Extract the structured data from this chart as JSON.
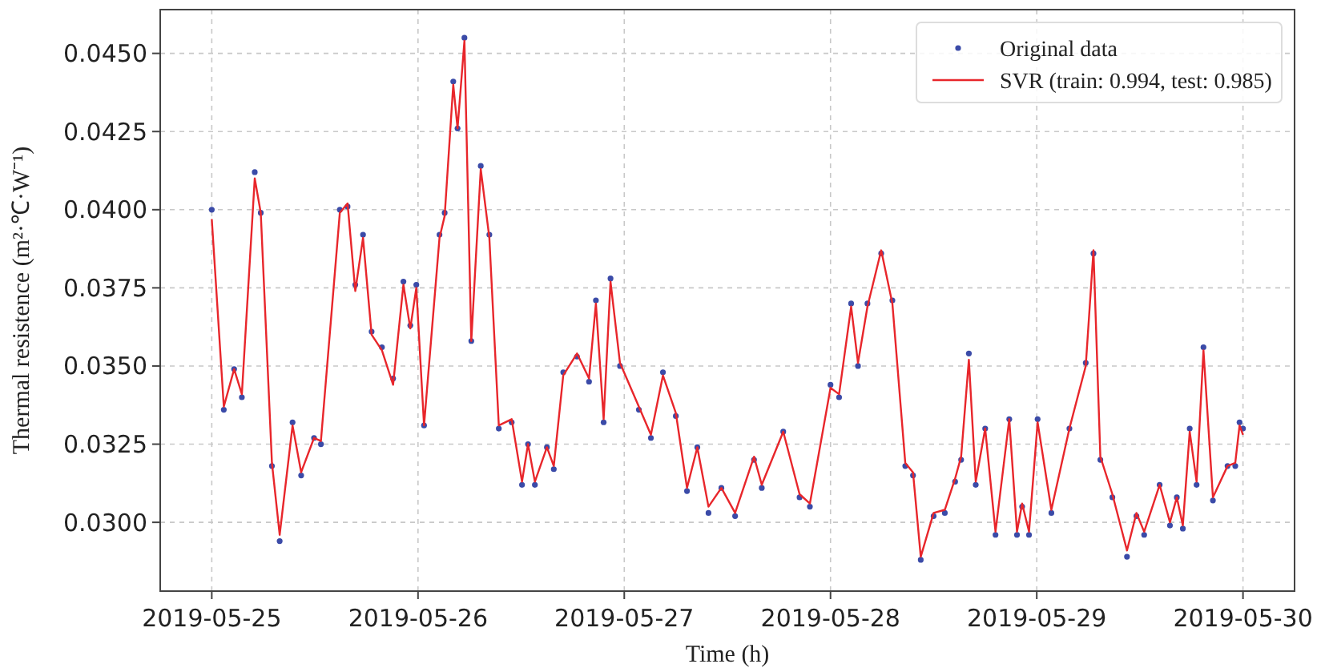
{
  "chart_data": {
    "type": "line",
    "xlabel": "Time (h)",
    "ylabel": "Thermal resistence  (m²·℃·W⁻¹)",
    "x": [
      "2019-05-25T00:00",
      "2019-05-25T01:24",
      "2019-05-25T02:36",
      "2019-05-25T03:30",
      "2019-05-25T05:00",
      "2019-05-25T05:42",
      "2019-05-25T07:00",
      "2019-05-25T07:54",
      "2019-05-25T09:24",
      "2019-05-25T10:24",
      "2019-05-25T11:54",
      "2019-05-25T12:42",
      "2019-05-25T14:54",
      "2019-05-25T15:48",
      "2019-05-25T16:42",
      "2019-05-25T17:36",
      "2019-05-25T18:36",
      "2019-05-25T19:48",
      "2019-05-25T21:06",
      "2019-05-25T22:18",
      "2019-05-25T23:06",
      "2019-05-25T23:48",
      "2019-05-26T00:42",
      "2019-05-26T02:30",
      "2019-05-26T03:06",
      "2019-05-26T04:06",
      "2019-05-26T04:36",
      "2019-05-26T05:24",
      "2019-05-26T06:12",
      "2019-05-26T07:18",
      "2019-05-26T08:18",
      "2019-05-26T09:24",
      "2019-05-26T10:54",
      "2019-05-26T12:06",
      "2019-05-26T12:48",
      "2019-05-26T13:36",
      "2019-05-26T15:00",
      "2019-05-26T15:48",
      "2019-05-26T16:54",
      "2019-05-26T18:30",
      "2019-05-26T19:54",
      "2019-05-26T20:42",
      "2019-05-26T21:36",
      "2019-05-26T22:24",
      "2019-05-26T23:30",
      "2019-05-27T01:42",
      "2019-05-27T03:06",
      "2019-05-27T04:30",
      "2019-05-27T06:00",
      "2019-05-27T07:18",
      "2019-05-27T08:30",
      "2019-05-27T09:48",
      "2019-05-27T11:18",
      "2019-05-27T12:54",
      "2019-05-27T15:06",
      "2019-05-27T16:00",
      "2019-05-27T18:30",
      "2019-05-27T20:24",
      "2019-05-27T21:36",
      "2019-05-28T00:00",
      "2019-05-28T01:00",
      "2019-05-28T02:24",
      "2019-05-28T03:12",
      "2019-05-28T04:18",
      "2019-05-28T05:54",
      "2019-05-28T07:12",
      "2019-05-28T08:42",
      "2019-05-28T09:36",
      "2019-05-28T10:30",
      "2019-05-28T12:00",
      "2019-05-28T13:18",
      "2019-05-28T14:30",
      "2019-05-28T15:12",
      "2019-05-28T16:06",
      "2019-05-28T16:54",
      "2019-05-28T18:00",
      "2019-05-28T19:12",
      "2019-05-28T20:48",
      "2019-05-28T21:42",
      "2019-05-28T22:18",
      "2019-05-28T23:06",
      "2019-05-29T00:06",
      "2019-05-29T01:42",
      "2019-05-29T03:48",
      "2019-05-29T05:42",
      "2019-05-29T06:36",
      "2019-05-29T07:24",
      "2019-05-29T08:48",
      "2019-05-29T10:30",
      "2019-05-29T11:36",
      "2019-05-29T12:30",
      "2019-05-29T14:18",
      "2019-05-29T15:30",
      "2019-05-29T16:18",
      "2019-05-29T17:00",
      "2019-05-29T17:48",
      "2019-05-29T18:36",
      "2019-05-29T19:24",
      "2019-05-29T20:30",
      "2019-05-29T22:12",
      "2019-05-29T23:06",
      "2019-05-29T23:36",
      "2019-05-30T00:00"
    ],
    "series": [
      {
        "name": "Original data",
        "type": "scatter",
        "marker": "circle",
        "color": "#3b4ba8",
        "values": [
          0.04,
          0.0336,
          0.0349,
          0.034,
          0.0412,
          0.0399,
          0.0318,
          0.0294,
          0.0332,
          0.0315,
          0.0327,
          0.0325,
          0.04,
          0.0401,
          0.0376,
          0.0392,
          0.0361,
          0.0356,
          0.0346,
          0.0377,
          0.0363,
          0.0376,
          0.0331,
          0.0392,
          0.0399,
          0.0441,
          0.0426,
          0.0455,
          0.0358,
          0.0414,
          0.0392,
          0.033,
          0.0332,
          0.0312,
          0.0325,
          0.0312,
          0.0324,
          0.0317,
          0.0348,
          0.0353,
          0.0345,
          0.0371,
          0.0332,
          0.0378,
          0.035,
          0.0336,
          0.0327,
          0.0348,
          0.0334,
          0.031,
          0.0324,
          0.0303,
          0.0311,
          0.0302,
          0.032,
          0.0311,
          0.0329,
          0.0308,
          0.0305,
          0.0344,
          0.034,
          0.037,
          0.035,
          0.037,
          0.0386,
          0.0371,
          0.0318,
          0.0315,
          0.0288,
          0.0302,
          0.0303,
          0.0313,
          0.032,
          0.0354,
          0.0312,
          0.033,
          0.0296,
          0.0333,
          0.0296,
          0.0305,
          0.0296,
          0.0333,
          0.0303,
          0.033,
          0.0351,
          0.0386,
          0.032,
          0.0308,
          0.0289,
          0.0302,
          0.0296,
          0.0312,
          0.0299,
          0.0308,
          0.0298,
          0.033,
          0.0312,
          0.0356,
          0.0307,
          0.0318,
          0.0318,
          0.0332,
          0.033
        ]
      },
      {
        "name": "SVR (train: 0.994, test: 0.985)",
        "type": "line",
        "marker": "none",
        "line_style": "solid",
        "color": "#e8262b",
        "values": [
          0.0397,
          0.0337,
          0.0349,
          0.0341,
          0.041,
          0.0399,
          0.0319,
          0.0296,
          0.0331,
          0.0316,
          0.0327,
          0.0326,
          0.0399,
          0.0402,
          0.0374,
          0.0391,
          0.036,
          0.0355,
          0.0344,
          0.0376,
          0.0362,
          0.0375,
          0.0331,
          0.0391,
          0.0398,
          0.044,
          0.0426,
          0.0454,
          0.0358,
          0.0413,
          0.0391,
          0.0331,
          0.0333,
          0.0313,
          0.0325,
          0.0313,
          0.0324,
          0.0318,
          0.0347,
          0.0354,
          0.0346,
          0.037,
          0.0333,
          0.0377,
          0.0351,
          0.0337,
          0.0328,
          0.0347,
          0.0335,
          0.0311,
          0.0324,
          0.0305,
          0.0311,
          0.0303,
          0.0321,
          0.0312,
          0.0329,
          0.0309,
          0.0306,
          0.0343,
          0.0341,
          0.0369,
          0.0351,
          0.0369,
          0.0387,
          0.037,
          0.0319,
          0.0316,
          0.0289,
          0.0303,
          0.0304,
          0.0314,
          0.0321,
          0.0352,
          0.0313,
          0.033,
          0.0297,
          0.0333,
          0.0297,
          0.0306,
          0.0297,
          0.0332,
          0.0304,
          0.033,
          0.035,
          0.0387,
          0.0321,
          0.0309,
          0.0291,
          0.0303,
          0.0297,
          0.0312,
          0.03,
          0.0308,
          0.0299,
          0.0329,
          0.0313,
          0.0355,
          0.0308,
          0.0318,
          0.0319,
          0.0331,
          0.0328
        ]
      }
    ],
    "xlim": [
      "2019-05-24T18:00",
      "2019-05-30T06:00"
    ],
    "xticks": [
      "2019-05-25",
      "2019-05-26",
      "2019-05-27",
      "2019-05-28",
      "2019-05-29",
      "2019-05-30"
    ],
    "ylim": [
      0.0278,
      0.0464
    ],
    "yticks": [
      {
        "value": 0.03,
        "label": "0.0300"
      },
      {
        "value": 0.0325,
        "label": "0.0325"
      },
      {
        "value": 0.035,
        "label": "0.0350"
      },
      {
        "value": 0.0375,
        "label": "0.0375"
      },
      {
        "value": 0.04,
        "label": "0.0400"
      },
      {
        "value": 0.0425,
        "label": "0.0425"
      },
      {
        "value": 0.045,
        "label": "0.0450"
      }
    ],
    "grid": true,
    "legend": "top right"
  }
}
